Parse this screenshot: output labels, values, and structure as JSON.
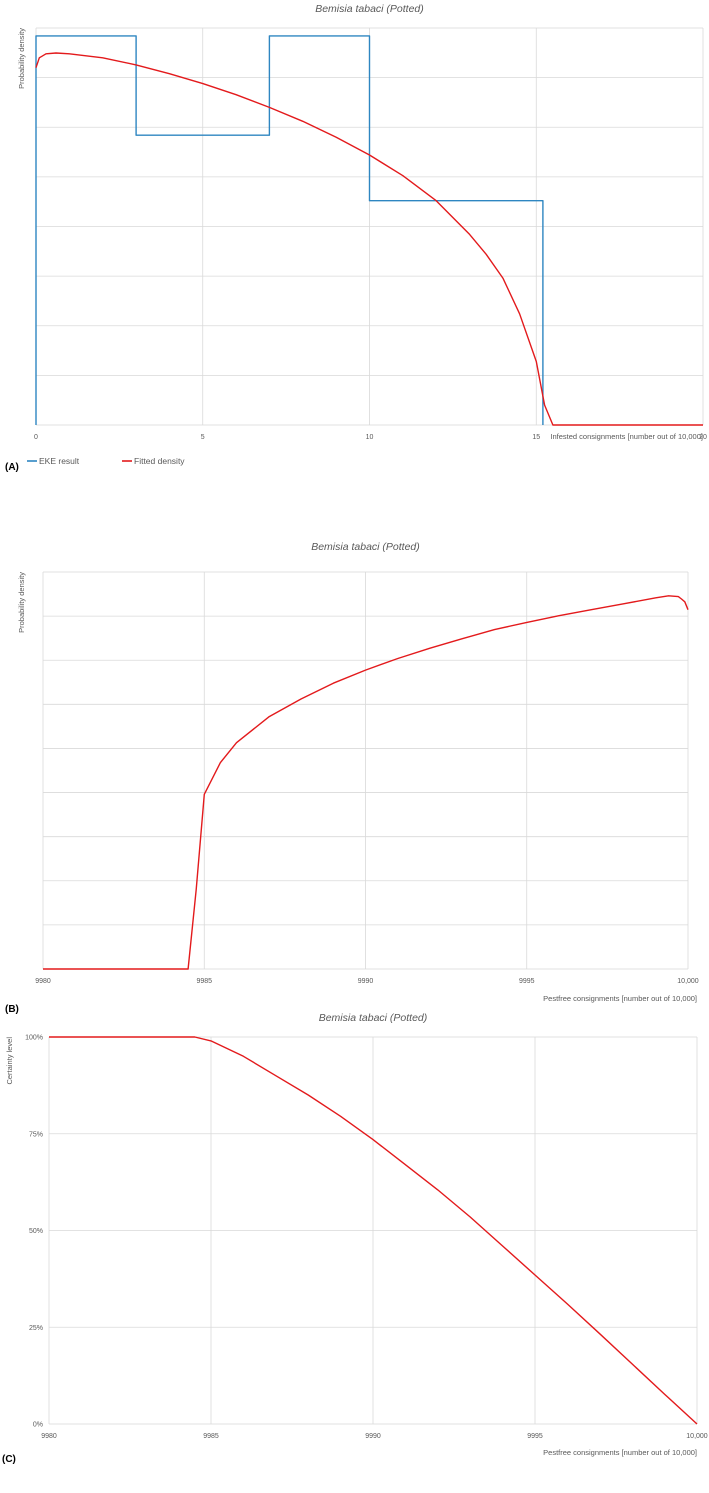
{
  "colors": {
    "eke": "#2e86c1",
    "fitted": "#e31a1c",
    "grid": "#d9d9d9",
    "text": "#595959"
  },
  "legend": {
    "eke_label": "EKE result",
    "fitted_label": "Fitted density"
  },
  "chart_data": [
    {
      "panel_label": "(A)",
      "type": "line",
      "title": "Bemisia tabaci (Potted)",
      "xlabel": "Infested consignments [number out of 10,000]",
      "ylabel": "Probability density",
      "xlim": [
        0,
        20
      ],
      "ylim": [
        0,
        1
      ],
      "xticks": [
        0,
        5,
        10,
        15,
        20
      ],
      "xtick_labels": [
        "0",
        "5",
        "10",
        "15",
        "20"
      ],
      "ygrid_count": 8,
      "grid": true,
      "legend_position": "bottom-left",
      "series": [
        {
          "name": "EKE result",
          "key": "eke",
          "step": true,
          "x": [
            0,
            0,
            3,
            3,
            7,
            7,
            10,
            10,
            15.2,
            15.2
          ],
          "y": [
            0,
            0.98,
            0.98,
            0.73,
            0.73,
            0.98,
            0.98,
            0.565,
            0.565,
            0
          ]
        },
        {
          "name": "Fitted density",
          "key": "fitted",
          "x": [
            0,
            0.1,
            0.2,
            0.3,
            0.6,
            1,
            2,
            3,
            4,
            5,
            6,
            7,
            8,
            9,
            10,
            11,
            12,
            13,
            13.5,
            14,
            14.5,
            15,
            15.25,
            15.5,
            17,
            20
          ],
          "y": [
            0.9,
            0.925,
            0.93,
            0.935,
            0.937,
            0.935,
            0.925,
            0.907,
            0.885,
            0.86,
            0.832,
            0.8,
            0.765,
            0.725,
            0.68,
            0.628,
            0.565,
            0.48,
            0.43,
            0.37,
            0.28,
            0.16,
            0.05,
            0,
            0,
            0
          ]
        }
      ]
    },
    {
      "panel_label": "(B)",
      "type": "line",
      "title": "Bemisia tabaci (Potted)",
      "xlabel": "Pestfree consignments [number out of 10,000]",
      "ylabel": "Probability density",
      "xlim": [
        9980,
        10000
      ],
      "ylim": [
        0,
        1
      ],
      "xticks": [
        9980,
        9985,
        9990,
        9995,
        10000
      ],
      "xtick_labels": [
        "9980",
        "9985",
        "9990",
        "9995",
        "10,000"
      ],
      "ygrid_count": 9,
      "grid": true,
      "series": [
        {
          "name": "Fitted density",
          "key": "fitted",
          "x": [
            9980,
            9984.5,
            9984.75,
            9985,
            9985.5,
            9986,
            9987,
            9988,
            9989,
            9990,
            9991,
            9992,
            9993,
            9994,
            9995,
            9996,
            9997,
            9998,
            9999,
            9999.4,
            9999.7,
            9999.8,
            9999.9,
            10000
          ],
          "y": [
            0,
            0,
            0.2,
            0.44,
            0.52,
            0.57,
            0.635,
            0.68,
            0.72,
            0.753,
            0.782,
            0.808,
            0.832,
            0.855,
            0.873,
            0.89,
            0.905,
            0.92,
            0.935,
            0.94,
            0.938,
            0.932,
            0.925,
            0.905
          ]
        }
      ]
    },
    {
      "panel_label": "(C)",
      "type": "line",
      "title": "Bemisia tabaci (Potted)",
      "xlabel": "Pestfree consignments [number out of 10,000]",
      "ylabel": "Certainty level",
      "xlim": [
        9980,
        10000
      ],
      "ylim": [
        0,
        100
      ],
      "xticks": [
        9980,
        9985,
        9990,
        9995,
        10000
      ],
      "xtick_labels": [
        "9980",
        "9985",
        "9990",
        "9995",
        "10,000"
      ],
      "yticks": [
        0,
        25,
        50,
        75,
        100
      ],
      "ytick_labels": [
        "0%",
        "25%",
        "50%",
        "75%",
        "100%"
      ],
      "grid": true,
      "series": [
        {
          "name": "Fitted density",
          "key": "fitted",
          "x": [
            9980,
            9984.5,
            9985,
            9986,
            9987,
            9988,
            9989,
            9990,
            9991,
            9992,
            9993,
            9994,
            9995,
            9996,
            9997,
            9998,
            9999,
            10000
          ],
          "y": [
            100,
            100,
            99,
            95,
            90,
            85,
            79.5,
            73.5,
            67,
            60.5,
            53.5,
            46,
            38.5,
            31,
            23.3,
            15.5,
            7.7,
            0
          ]
        }
      ]
    }
  ]
}
